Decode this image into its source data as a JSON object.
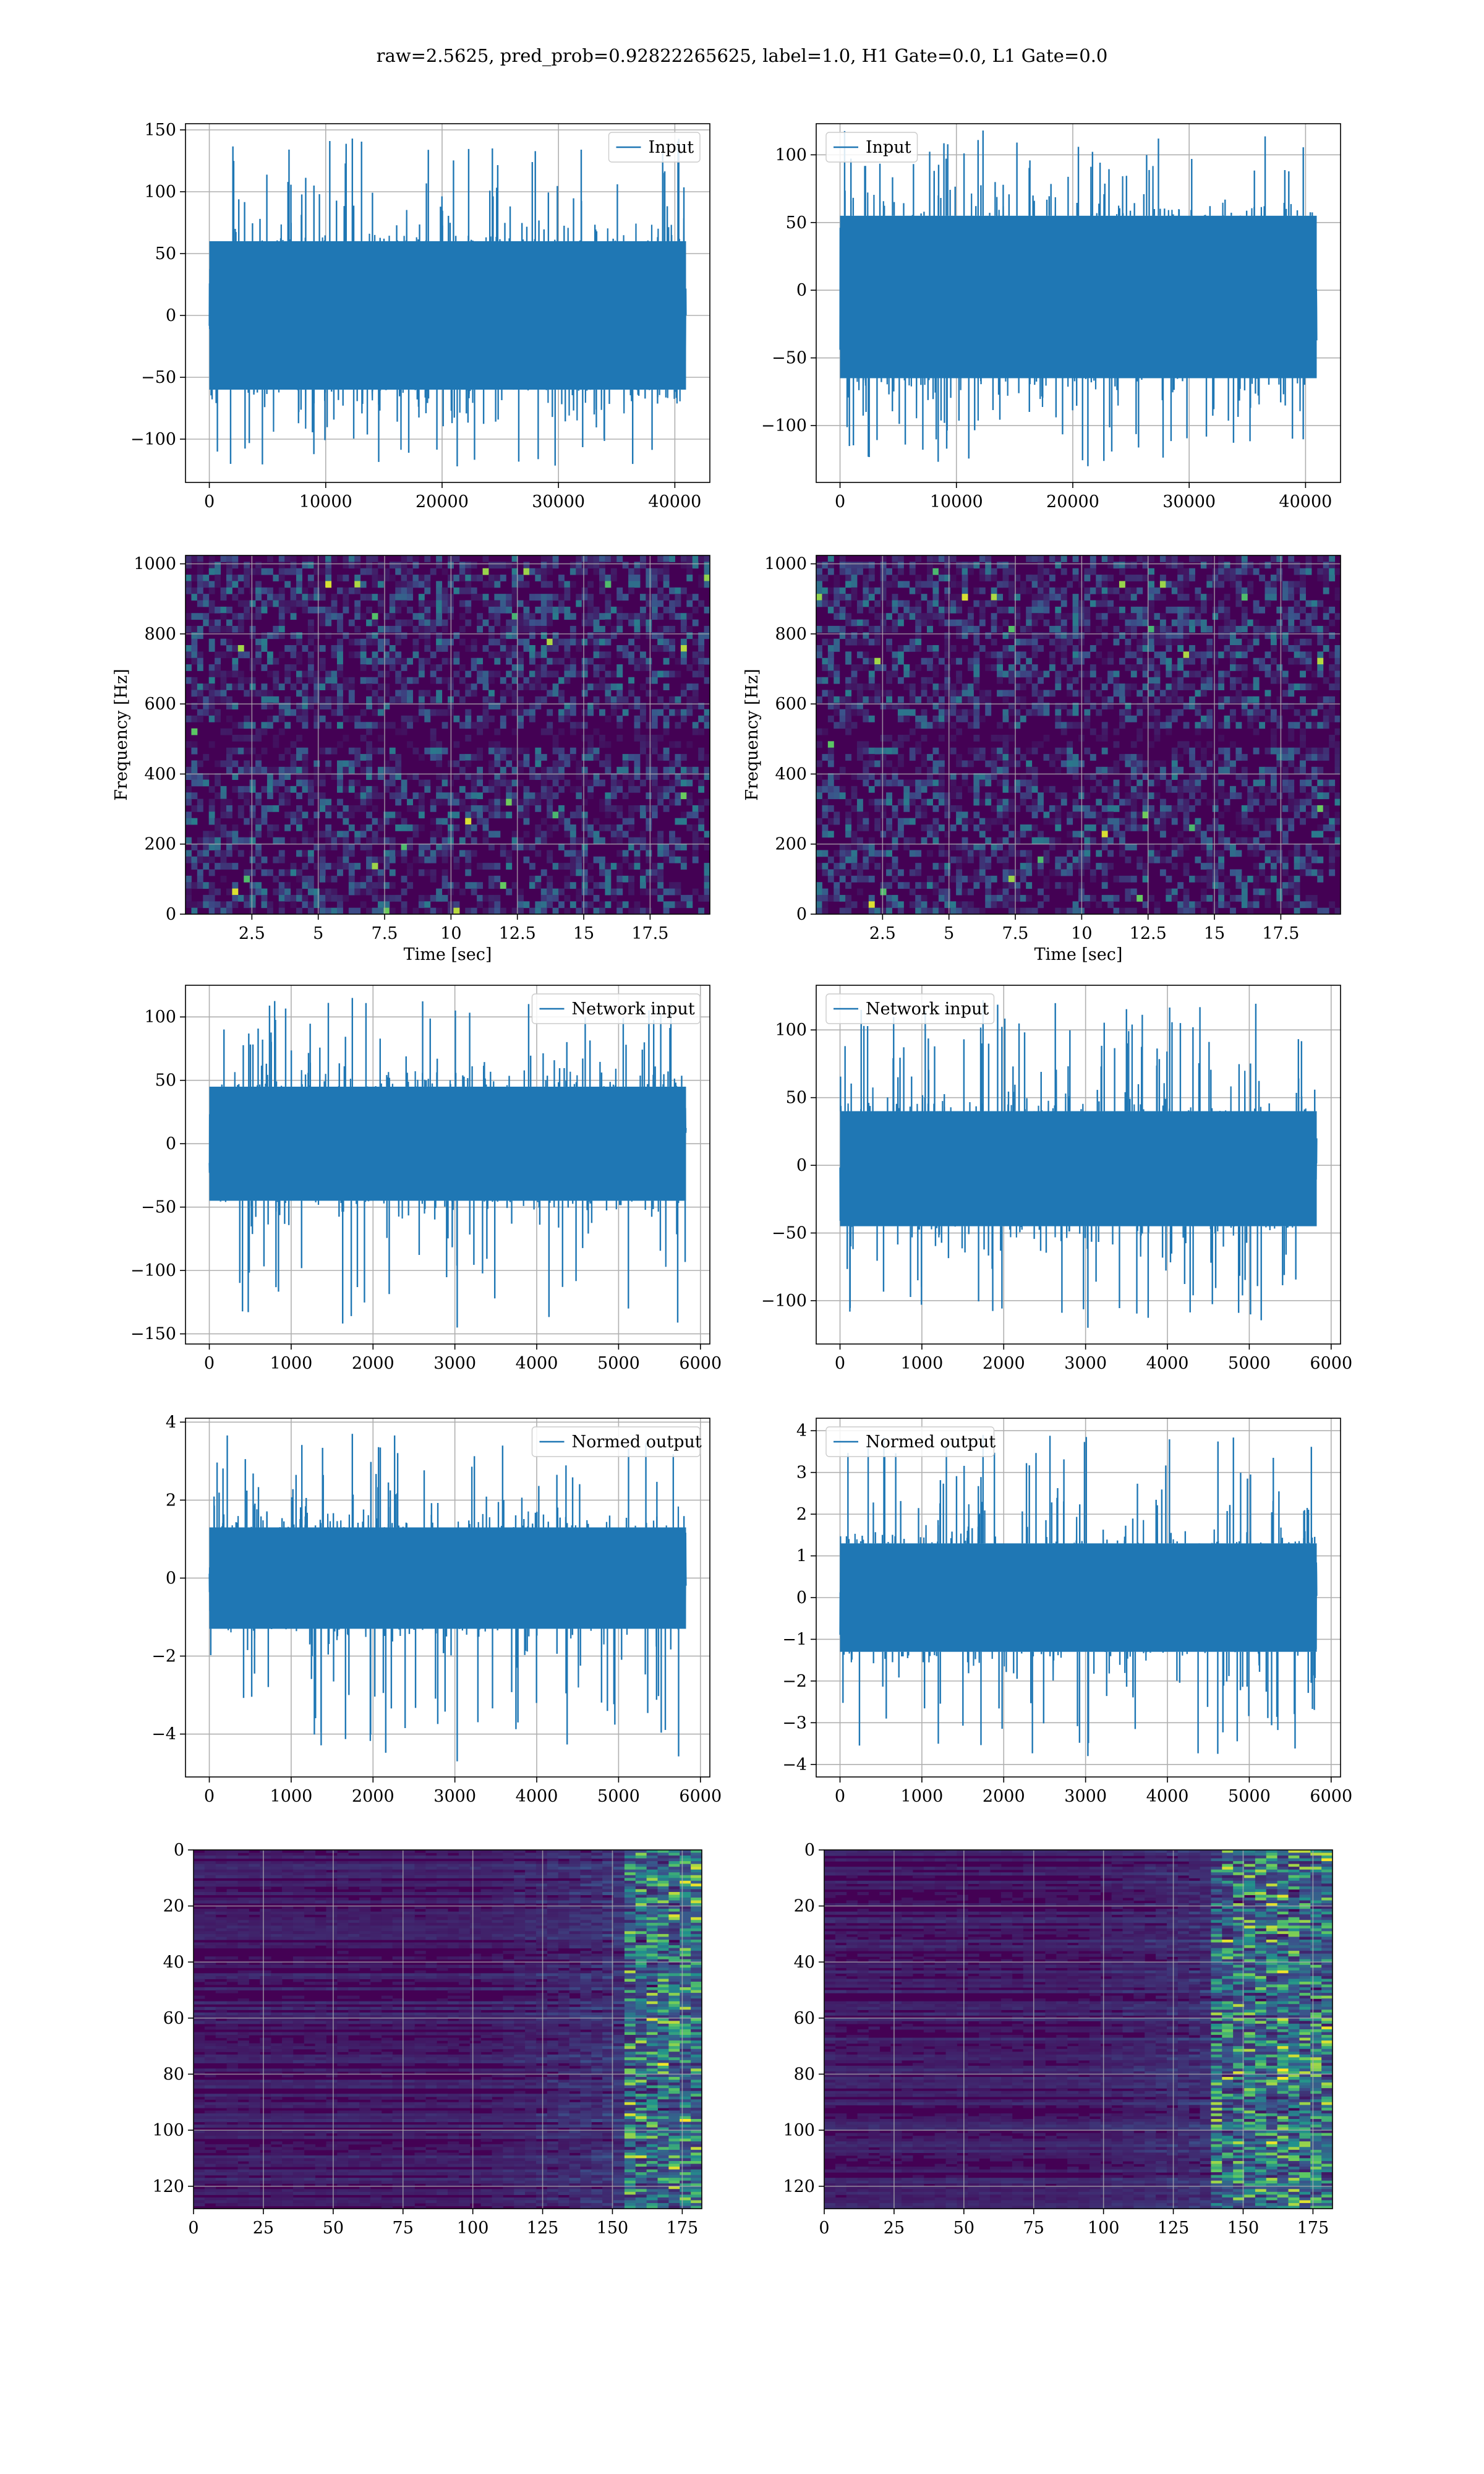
{
  "figure": {
    "suptitle": "raw=2.5625, pred_prob=0.92822265625, label=1.0, H1 Gate=0.0, L1 Gate=0.0"
  },
  "colors": {
    "series": "#1f77b4",
    "grid": "#b0b0b0",
    "viridis": [
      "#440154",
      "#3b528b",
      "#21918c",
      "#5ec962",
      "#fde725"
    ]
  },
  "chart_data": [
    {
      "type": "line",
      "id": "input-left",
      "series": [
        {
          "name": "Input"
        }
      ],
      "x_range": [
        0,
        40960
      ],
      "xlim": [
        -2048,
        43008
      ],
      "ylim": [
        -135,
        155
      ],
      "y_envelope": [
        -60,
        60
      ],
      "y_extremes": [
        -122,
        143
      ],
      "xticks": [
        0,
        10000,
        20000,
        30000,
        40000
      ],
      "yticks": [
        -100,
        -50,
        0,
        50,
        100,
        150
      ],
      "grid": true,
      "legend": "upper right"
    },
    {
      "type": "line",
      "id": "input-right",
      "series": [
        {
          "name": "Input"
        }
      ],
      "x_range": [
        0,
        40960
      ],
      "xlim": [
        -2048,
        43008
      ],
      "ylim": [
        -142,
        123
      ],
      "y_envelope": [
        -65,
        55
      ],
      "y_extremes": [
        -130,
        118
      ],
      "xticks": [
        0,
        10000,
        20000,
        30000,
        40000
      ],
      "yticks": [
        -100,
        -50,
        0,
        50,
        100
      ],
      "grid": true,
      "legend": "upper left"
    },
    {
      "type": "heatmap",
      "id": "spectrogram-left",
      "xlabel": "Time [sec]",
      "ylabel": "Frequency [Hz]",
      "xlim": [
        0,
        19.75
      ],
      "ylim": [
        0,
        1024
      ],
      "xticks": [
        2.5,
        5.0,
        7.5,
        10.0,
        12.5,
        15.0,
        17.5
      ],
      "yticks": [
        0,
        200,
        400,
        600,
        800,
        1000
      ],
      "colormap": "viridis",
      "grid": true
    },
    {
      "type": "heatmap",
      "id": "spectrogram-right",
      "xlabel": "Time [sec]",
      "ylabel": "Frequency [Hz]",
      "xlim": [
        0,
        19.75
      ],
      "ylim": [
        0,
        1024
      ],
      "xticks": [
        2.5,
        5.0,
        7.5,
        10.0,
        12.5,
        15.0,
        17.5
      ],
      "yticks": [
        0,
        200,
        400,
        600,
        800,
        1000
      ],
      "colormap": "viridis",
      "grid": true
    },
    {
      "type": "line",
      "id": "network-input-left",
      "series": [
        {
          "name": "Network input"
        }
      ],
      "x_range": [
        0,
        5824
      ],
      "xlim": [
        -291,
        6115
      ],
      "ylim": [
        -158,
        125
      ],
      "y_envelope": [
        -45,
        45
      ],
      "y_extremes": [
        -145,
        115
      ],
      "xticks": [
        0,
        1000,
        2000,
        3000,
        4000,
        5000,
        6000
      ],
      "yticks": [
        -150,
        -100,
        -50,
        0,
        50,
        100
      ],
      "grid": true,
      "legend": "upper right"
    },
    {
      "type": "line",
      "id": "network-input-right",
      "series": [
        {
          "name": "Network input"
        }
      ],
      "x_range": [
        0,
        5824
      ],
      "xlim": [
        -291,
        6115
      ],
      "ylim": [
        -132,
        133
      ],
      "y_envelope": [
        -45,
        40
      ],
      "y_extremes": [
        -120,
        122
      ],
      "xticks": [
        0,
        1000,
        2000,
        3000,
        4000,
        5000,
        6000
      ],
      "yticks": [
        -100,
        -50,
        0,
        50,
        100
      ],
      "grid": true,
      "legend": "upper left"
    },
    {
      "type": "line",
      "id": "normed-output-left",
      "series": [
        {
          "name": "Normed output"
        }
      ],
      "x_range": [
        0,
        5824
      ],
      "xlim": [
        -291,
        6115
      ],
      "ylim": [
        -5.1,
        4.1
      ],
      "y_envelope": [
        -1.3,
        1.3
      ],
      "y_extremes": [
        -4.7,
        3.7
      ],
      "xticks": [
        0,
        1000,
        2000,
        3000,
        4000,
        5000,
        6000
      ],
      "yticks": [
        -4,
        -2,
        0,
        2,
        4
      ],
      "grid": true,
      "legend": "upper right"
    },
    {
      "type": "line",
      "id": "normed-output-right",
      "series": [
        {
          "name": "Normed output"
        }
      ],
      "x_range": [
        0,
        5824
      ],
      "xlim": [
        -291,
        6115
      ],
      "ylim": [
        -4.3,
        4.3
      ],
      "y_envelope": [
        -1.3,
        1.3
      ],
      "y_extremes": [
        -3.8,
        3.9
      ],
      "xticks": [
        0,
        1000,
        2000,
        3000,
        4000,
        5000,
        6000
      ],
      "yticks": [
        -4,
        -3,
        -2,
        -1,
        0,
        1,
        2,
        3,
        4
      ],
      "grid": true,
      "legend": "upper left"
    },
    {
      "type": "heatmap",
      "id": "feature-map-left",
      "xlim": [
        0,
        182
      ],
      "ylim": [
        0,
        128
      ],
      "y_inverted": true,
      "xticks": [
        0,
        25,
        50,
        75,
        100,
        125,
        150,
        175
      ],
      "yticks": [
        0,
        20,
        40,
        60,
        80,
        100,
        120
      ],
      "colormap": "viridis",
      "grid": true,
      "activity_onset_x": 100,
      "strong_activity_x": 155
    },
    {
      "type": "heatmap",
      "id": "feature-map-right",
      "xlim": [
        0,
        182
      ],
      "ylim": [
        0,
        128
      ],
      "y_inverted": true,
      "xticks": [
        0,
        25,
        50,
        75,
        100,
        125,
        150,
        175
      ],
      "yticks": [
        0,
        20,
        40,
        60,
        80,
        100,
        120
      ],
      "colormap": "viridis",
      "grid": true,
      "activity_onset_x": 90,
      "strong_activity_x": 140
    }
  ]
}
